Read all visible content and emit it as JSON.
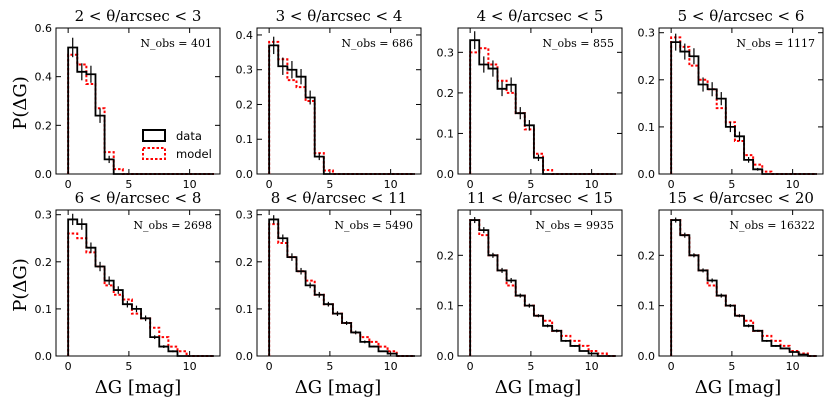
{
  "figure": {
    "xlabel": "ΔG [mag]",
    "ylabel": "P(ΔG)",
    "legend": {
      "data_label": "data",
      "model_label": "model",
      "location": "lower-right of first panel"
    },
    "colors": {
      "data": "#000000",
      "model": "#ff0000"
    }
  },
  "chart_data": [
    {
      "type": "histogram",
      "title": "2 < θ/arcsec < 3",
      "nobs_label": "N_obs = 401",
      "xlim": [
        -1,
        12.5
      ],
      "ylim": [
        0,
        0.6
      ],
      "yticks": [
        "0.0",
        "0.2",
        "0.4",
        "0.6"
      ],
      "xticks": [
        "0",
        "5",
        "10"
      ],
      "bin_width": 0.75,
      "data": [
        0.52,
        0.42,
        0.41,
        0.24,
        0.06,
        0,
        0,
        0,
        0,
        0,
        0,
        0,
        0,
        0,
        0,
        0
      ],
      "errors": [
        0.04,
        0.035,
        0.035,
        0.03,
        0.015,
        0,
        0,
        0,
        0,
        0,
        0,
        0,
        0,
        0,
        0,
        0
      ],
      "model": [
        0.49,
        0.45,
        0.37,
        0.27,
        0.09,
        0.02,
        0,
        0,
        0,
        0,
        0,
        0,
        0,
        0,
        0,
        0
      ]
    },
    {
      "type": "histogram",
      "title": "3 < θ/arcsec < 4",
      "nobs_label": "N_obs = 686",
      "xlim": [
        -1,
        12.5
      ],
      "ylim": [
        0,
        0.42
      ],
      "yticks": [
        "0.0",
        "0.1",
        "0.2",
        "0.3",
        "0.4"
      ],
      "xticks": [
        "0",
        "5",
        "10"
      ],
      "bin_width": 0.75,
      "data": [
        0.37,
        0.31,
        0.3,
        0.28,
        0.22,
        0.05,
        0,
        0,
        0,
        0,
        0,
        0,
        0,
        0,
        0,
        0
      ],
      "errors": [
        0.025,
        0.025,
        0.025,
        0.022,
        0.02,
        0.01,
        0,
        0,
        0,
        0,
        0,
        0,
        0,
        0,
        0,
        0
      ],
      "model": [
        0.38,
        0.33,
        0.27,
        0.25,
        0.21,
        0.06,
        0.01,
        0,
        0,
        0,
        0,
        0,
        0,
        0,
        0,
        0
      ]
    },
    {
      "type": "histogram",
      "title": "4 < θ/arcsec < 5",
      "nobs_label": "N_obs = 855",
      "xlim": [
        -1,
        12.5
      ],
      "ylim": [
        0,
        0.36
      ],
      "yticks": [
        "0.0",
        "0.1",
        "0.2",
        "0.3"
      ],
      "xticks": [
        "0",
        "5",
        "10"
      ],
      "bin_width": 0.75,
      "data": [
        0.33,
        0.27,
        0.26,
        0.21,
        0.22,
        0.15,
        0.12,
        0.04,
        0,
        0,
        0,
        0,
        0,
        0,
        0,
        0
      ],
      "errors": [
        0.022,
        0.02,
        0.02,
        0.018,
        0.018,
        0.015,
        0.013,
        0.008,
        0,
        0,
        0,
        0,
        0,
        0,
        0,
        0
      ],
      "model": [
        0.3,
        0.31,
        0.27,
        0.23,
        0.2,
        0.15,
        0.11,
        0.05,
        0.01,
        0,
        0,
        0,
        0,
        0,
        0,
        0
      ]
    },
    {
      "type": "histogram",
      "title": "5 < θ/arcsec < 6",
      "nobs_label": "N_obs = 1117",
      "xlim": [
        -1,
        12.5
      ],
      "ylim": [
        0,
        0.31
      ],
      "yticks": [
        "0.0",
        "0.1",
        "0.2",
        "0.3"
      ],
      "xticks": [
        "0",
        "5",
        "10"
      ],
      "bin_width": 0.75,
      "data": [
        0.28,
        0.26,
        0.25,
        0.19,
        0.18,
        0.16,
        0.1,
        0.08,
        0.03,
        0.01,
        0,
        0,
        0,
        0,
        0,
        0
      ],
      "errors": [
        0.018,
        0.017,
        0.017,
        0.015,
        0.015,
        0.014,
        0.011,
        0.01,
        0.006,
        0.003,
        0,
        0,
        0,
        0,
        0,
        0
      ],
      "model": [
        0.29,
        0.27,
        0.23,
        0.2,
        0.18,
        0.14,
        0.11,
        0.07,
        0.04,
        0.02,
        0.005,
        0,
        0,
        0,
        0,
        0
      ]
    },
    {
      "type": "histogram",
      "title": "6 < θ/arcsec < 8",
      "nobs_label": "N_obs = 2698",
      "xlim": [
        -1,
        12.5
      ],
      "ylim": [
        0,
        0.31
      ],
      "yticks": [
        "0.0",
        "0.1",
        "0.2",
        "0.3"
      ],
      "xticks": [
        "0",
        "5",
        "10"
      ],
      "bin_width": 0.75,
      "data": [
        0.29,
        0.28,
        0.23,
        0.19,
        0.16,
        0.14,
        0.11,
        0.1,
        0.08,
        0.04,
        0.02,
        0.01,
        0,
        0,
        0,
        0
      ],
      "errors": [
        0.012,
        0.012,
        0.011,
        0.01,
        0.009,
        0.008,
        0.007,
        0.007,
        0.006,
        0.004,
        0.003,
        0.002,
        0,
        0,
        0,
        0
      ],
      "model": [
        0.26,
        0.25,
        0.22,
        0.19,
        0.15,
        0.13,
        0.12,
        0.09,
        0.08,
        0.06,
        0.04,
        0.02,
        0.01,
        0,
        0,
        0
      ]
    },
    {
      "type": "histogram",
      "title": "8 < θ/arcsec < 11",
      "nobs_label": "N_obs = 5490",
      "xlim": [
        -1,
        12.5
      ],
      "ylim": [
        0,
        0.31
      ],
      "yticks": [
        "0.0",
        "0.1",
        "0.2",
        "0.3"
      ],
      "xticks": [
        "0",
        "5",
        "10"
      ],
      "bin_width": 0.75,
      "data": [
        0.29,
        0.25,
        0.21,
        0.18,
        0.15,
        0.13,
        0.11,
        0.09,
        0.07,
        0.05,
        0.03,
        0.02,
        0.01,
        0.005,
        0,
        0
      ],
      "errors": [
        0.009,
        0.008,
        0.008,
        0.007,
        0.006,
        0.006,
        0.005,
        0.005,
        0.004,
        0.004,
        0.003,
        0.002,
        0.001,
        0.001,
        0,
        0
      ],
      "model": [
        0.28,
        0.24,
        0.21,
        0.18,
        0.16,
        0.13,
        0.11,
        0.09,
        0.07,
        0.05,
        0.04,
        0.03,
        0.02,
        0.01,
        0,
        0
      ]
    },
    {
      "type": "histogram",
      "title": "11 < θ/arcsec < 15",
      "nobs_label": "N_obs = 9935",
      "xlim": [
        -1,
        12.5
      ],
      "ylim": [
        0,
        0.29
      ],
      "yticks": [
        "0.0",
        "0.1",
        "0.2"
      ],
      "xticks": [
        "0",
        "5",
        "10"
      ],
      "bin_width": 0.75,
      "data": [
        0.27,
        0.25,
        0.2,
        0.17,
        0.15,
        0.12,
        0.1,
        0.08,
        0.06,
        0.05,
        0.03,
        0.02,
        0.01,
        0.005,
        0,
        0
      ],
      "errors": [
        0.006,
        0.006,
        0.005,
        0.005,
        0.005,
        0.004,
        0.004,
        0.003,
        0.003,
        0.003,
        0.002,
        0.002,
        0.001,
        0.001,
        0,
        0
      ],
      "model": [
        0.27,
        0.24,
        0.2,
        0.17,
        0.14,
        0.12,
        0.1,
        0.08,
        0.07,
        0.05,
        0.04,
        0.03,
        0.02,
        0.01,
        0.005,
        0
      ]
    },
    {
      "type": "histogram",
      "title": "15 < θ/arcsec < 20",
      "nobs_label": "N_obs = 16322",
      "xlim": [
        -1,
        12.5
      ],
      "ylim": [
        0,
        0.29
      ],
      "yticks": [
        "0.0",
        "0.1",
        "0.2"
      ],
      "xticks": [
        "0",
        "5",
        "10"
      ],
      "bin_width": 0.75,
      "data": [
        0.27,
        0.24,
        0.2,
        0.17,
        0.15,
        0.12,
        0.1,
        0.08,
        0.06,
        0.05,
        0.03,
        0.02,
        0.015,
        0.008,
        0.003,
        0
      ],
      "errors": [
        0.005,
        0.005,
        0.004,
        0.004,
        0.004,
        0.004,
        0.003,
        0.003,
        0.003,
        0.002,
        0.002,
        0.002,
        0.001,
        0.001,
        0.001,
        0
      ],
      "model": [
        0.27,
        0.24,
        0.2,
        0.17,
        0.14,
        0.12,
        0.1,
        0.08,
        0.07,
        0.05,
        0.04,
        0.03,
        0.02,
        0.01,
        0.005,
        0
      ]
    }
  ]
}
